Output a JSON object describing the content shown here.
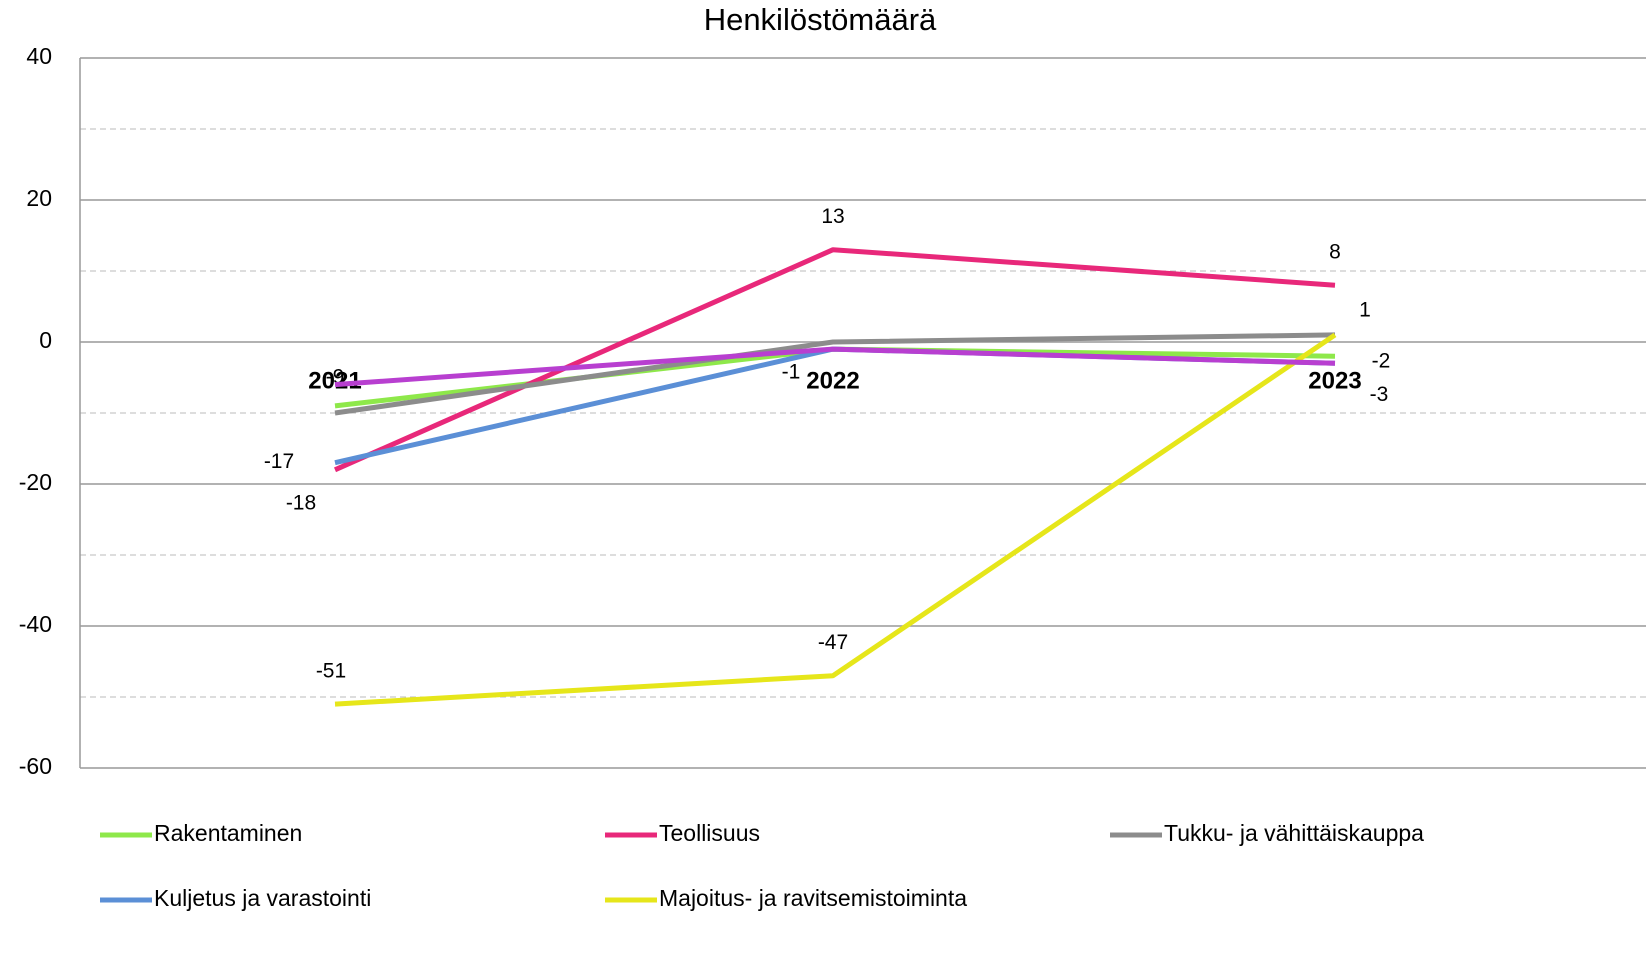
{
  "chart_data": {
    "type": "line",
    "title": "Henkilöstömäärä",
    "categories": [
      "2021",
      "2022",
      "2023"
    ],
    "ylim": [
      -60,
      40
    ],
    "yticks": [
      -60,
      -40,
      -20,
      0,
      20,
      40
    ],
    "grid": true,
    "series": [
      {
        "name": "Rakentaminen",
        "color": "#8ee84a",
        "values": [
          -9,
          -1,
          -2
        ],
        "value_labels": [
          "-9",
          "-1",
          "-2"
        ]
      },
      {
        "name": "Teollisuus",
        "color": "#e8287a",
        "values": [
          -18,
          13,
          8
        ],
        "value_labels": [
          "-18",
          "13",
          "8"
        ]
      },
      {
        "name": "Tukku- ja vähittäiskauppa",
        "color": "#8c8c8c",
        "values": [
          -10,
          0,
          1
        ],
        "value_labels": [
          null,
          null,
          "1"
        ]
      },
      {
        "name": "Kuljetus ja varastointi",
        "color": "#5b8fd6",
        "values": [
          -17,
          -1,
          -3
        ],
        "value_labels": [
          "-17",
          null,
          "-3"
        ]
      },
      {
        "name": "Majoitus- ja ravitsemistoiminta",
        "color": "#e6e61a",
        "values": [
          -51,
          -47,
          1
        ],
        "value_labels": [
          "-51",
          "-47",
          null
        ]
      },
      {
        "color": "#b83fd0",
        "values": [
          -6,
          -1,
          -3
        ]
      }
    ]
  }
}
